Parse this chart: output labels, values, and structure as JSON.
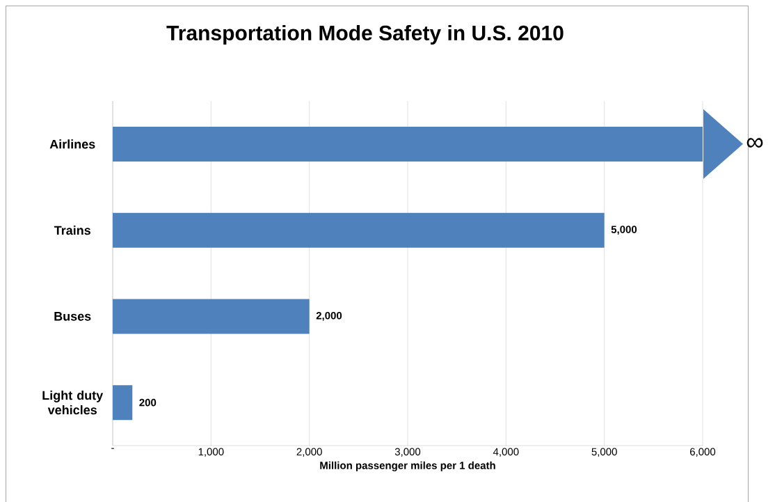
{
  "chart_data": {
    "type": "bar",
    "orientation": "horizontal",
    "title": "Transportation Mode Safety in U.S. 2010",
    "xlabel": "Million passenger miles per 1 death",
    "categories": [
      "Airlines",
      "Trains",
      "Buses",
      "Light duty vehicles"
    ],
    "values": [
      6000,
      5000,
      2000,
      200
    ],
    "value_labels": [
      "∞",
      "5,000",
      "2,000",
      "200"
    ],
    "color": "#4f81bd",
    "xlim": [
      0,
      6000
    ],
    "xticks": [
      {
        "value": 0,
        "label": "-"
      },
      {
        "value": 1000,
        "label": "1,000"
      },
      {
        "value": 2000,
        "label": "2,000"
      },
      {
        "value": 3000,
        "label": "3,000"
      },
      {
        "value": 4000,
        "label": "4,000"
      },
      {
        "value": 5000,
        "label": "5,000"
      },
      {
        "value": 6000,
        "label": "6,000"
      }
    ],
    "grid": "x"
  }
}
